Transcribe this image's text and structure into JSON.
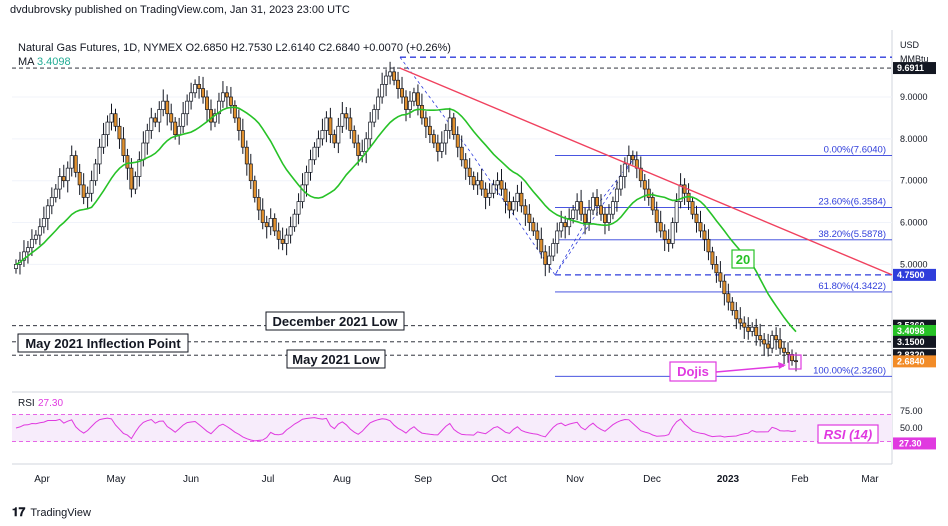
{
  "header": {
    "publisher": "dvdubrovsky published on TradingView.com, Jan 31, 2023 23:00 UTC",
    "symbol_line": "Natural Gas Futures, 1D, NYMEX  O2.6850  H2.7530  L2.6140  C2.6840  +0.0070 (+0.26%)",
    "ma_label": "MA",
    "ma_value": "3.4098",
    "currency": "USD",
    "unit": "MMBtu"
  },
  "footer": {
    "logo": "TradingView"
  },
  "annotations": {
    "dec2021": "December 2021 Low",
    "may2021_inflection": "May 2021 Inflection Point",
    "may2021_low": "May 2021 Low",
    "dojis": "Dojis",
    "ma20": "20",
    "rsi14": "RSI (14)"
  },
  "colors": {
    "up": "#ffffff",
    "down": "#e0902e",
    "candle_outline": "#131722",
    "ma": "#27c227",
    "trendline": "#f0415e",
    "fib": "#2f3ddb",
    "rsi": "#e03ae0",
    "price_tag": "#f28c28"
  },
  "chart_data": {
    "type": "candlestick",
    "title": "Natural Gas Futures, 1D, NYMEX",
    "price_axis": {
      "ticks": [
        "9.0000",
        "8.0000",
        "7.0000",
        "6.0000",
        "5.0000"
      ],
      "range": [
        2.0,
        10.6
      ]
    },
    "price_labels": [
      {
        "text": "9.6911",
        "value": 9.6911,
        "style": "black"
      },
      {
        "text": "4.7500",
        "value": 4.75,
        "style": "blue"
      },
      {
        "text": "3.5360",
        "value": 3.536,
        "style": "black"
      },
      {
        "text": "3.4098",
        "value": 3.4098,
        "style": "green"
      },
      {
        "text": "3.1500",
        "value": 3.15,
        "style": "black"
      },
      {
        "text": "2.8320",
        "value": 2.832,
        "style": "black"
      },
      {
        "text": "2.6840",
        "value": 2.684,
        "style": "orange"
      }
    ],
    "x_labels": [
      "Apr",
      "May",
      "Jun",
      "Jul",
      "Aug",
      "Sep",
      "Oct",
      "Nov",
      "Dec",
      "2023",
      "Feb",
      "Mar"
    ],
    "fib_levels": [
      {
        "label": "0.00%(7.6040)",
        "value": 7.604
      },
      {
        "label": "23.60%(6.3584)",
        "value": 6.3584
      },
      {
        "label": "38.20%(5.5878)",
        "value": 5.5878
      },
      {
        "label": "61.80%(4.3422)",
        "value": 4.3422
      },
      {
        "label": "100.00%(2.3260)",
        "value": 2.326
      }
    ],
    "horizontal_levels": [
      9.6911,
      4.75,
      3.536,
      3.15,
      2.832
    ],
    "close_series": [
      5.0,
      5.1,
      5.3,
      5.4,
      5.6,
      5.7,
      5.9,
      6.1,
      6.4,
      6.6,
      6.8,
      7.1,
      7.0,
      7.3,
      7.6,
      7.2,
      6.9,
      6.6,
      6.7,
      7.0,
      7.4,
      7.8,
      8.1,
      8.4,
      8.6,
      8.3,
      8.0,
      7.6,
      7.3,
      6.8,
      7.1,
      7.5,
      7.9,
      8.2,
      8.5,
      8.4,
      8.7,
      8.9,
      8.6,
      8.4,
      8.1,
      8.3,
      8.6,
      8.9,
      9.1,
      9.3,
      9.2,
      9.0,
      8.7,
      8.4,
      8.6,
      8.9,
      9.1,
      9.0,
      8.8,
      8.5,
      8.2,
      7.8,
      7.4,
      7.0,
      6.6,
      6.3,
      6.0,
      5.9,
      6.1,
      5.8,
      5.6,
      5.5,
      5.7,
      5.9,
      6.2,
      6.5,
      6.9,
      7.2,
      7.5,
      7.8,
      8.0,
      8.2,
      8.5,
      8.1,
      7.9,
      8.3,
      8.6,
      8.5,
      8.2,
      7.9,
      7.6,
      7.7,
      8.0,
      8.4,
      8.7,
      9.0,
      9.3,
      9.5,
      9.6,
      9.4,
      9.2,
      9.0,
      8.7,
      8.9,
      9.1,
      8.8,
      8.5,
      8.3,
      8.1,
      7.9,
      7.7,
      7.9,
      8.2,
      8.5,
      8.1,
      7.8,
      7.5,
      7.3,
      7.1,
      6.9,
      7.0,
      6.8,
      6.6,
      6.7,
      6.9,
      7.0,
      6.8,
      6.5,
      6.3,
      6.5,
      6.7,
      6.4,
      6.2,
      6.0,
      5.8,
      5.6,
      5.3,
      5.0,
      5.2,
      5.5,
      5.8,
      6.0,
      5.9,
      6.1,
      6.3,
      6.5,
      6.2,
      6.0,
      6.3,
      6.6,
      6.4,
      6.2,
      6.0,
      6.2,
      6.5,
      6.8,
      7.1,
      7.4,
      7.6,
      7.5,
      7.3,
      7.0,
      6.8,
      6.6,
      6.3,
      6.0,
      5.8,
      5.6,
      5.5,
      6.0,
      6.5,
      6.9,
      6.7,
      6.5,
      6.2,
      6.0,
      5.8,
      5.6,
      5.3,
      5.0,
      4.8,
      4.6,
      4.3,
      4.1,
      3.9,
      3.7,
      3.6,
      3.5,
      3.4,
      3.5,
      3.3,
      3.2,
      3.1,
      3.0,
      3.3,
      3.2,
      3.0,
      2.9,
      2.85,
      2.7,
      2.684
    ],
    "ma_period": 20,
    "trendline": {
      "start": {
        "date": "Aug 22",
        "price": 9.69
      },
      "end": {
        "date": "Feb 28",
        "price": 4.75
      }
    },
    "rsi": {
      "label": "RSI",
      "value": "27.30",
      "ticks": [
        "75.00",
        "50.00",
        "27.30"
      ],
      "upper": 70,
      "lower": 30
    }
  }
}
